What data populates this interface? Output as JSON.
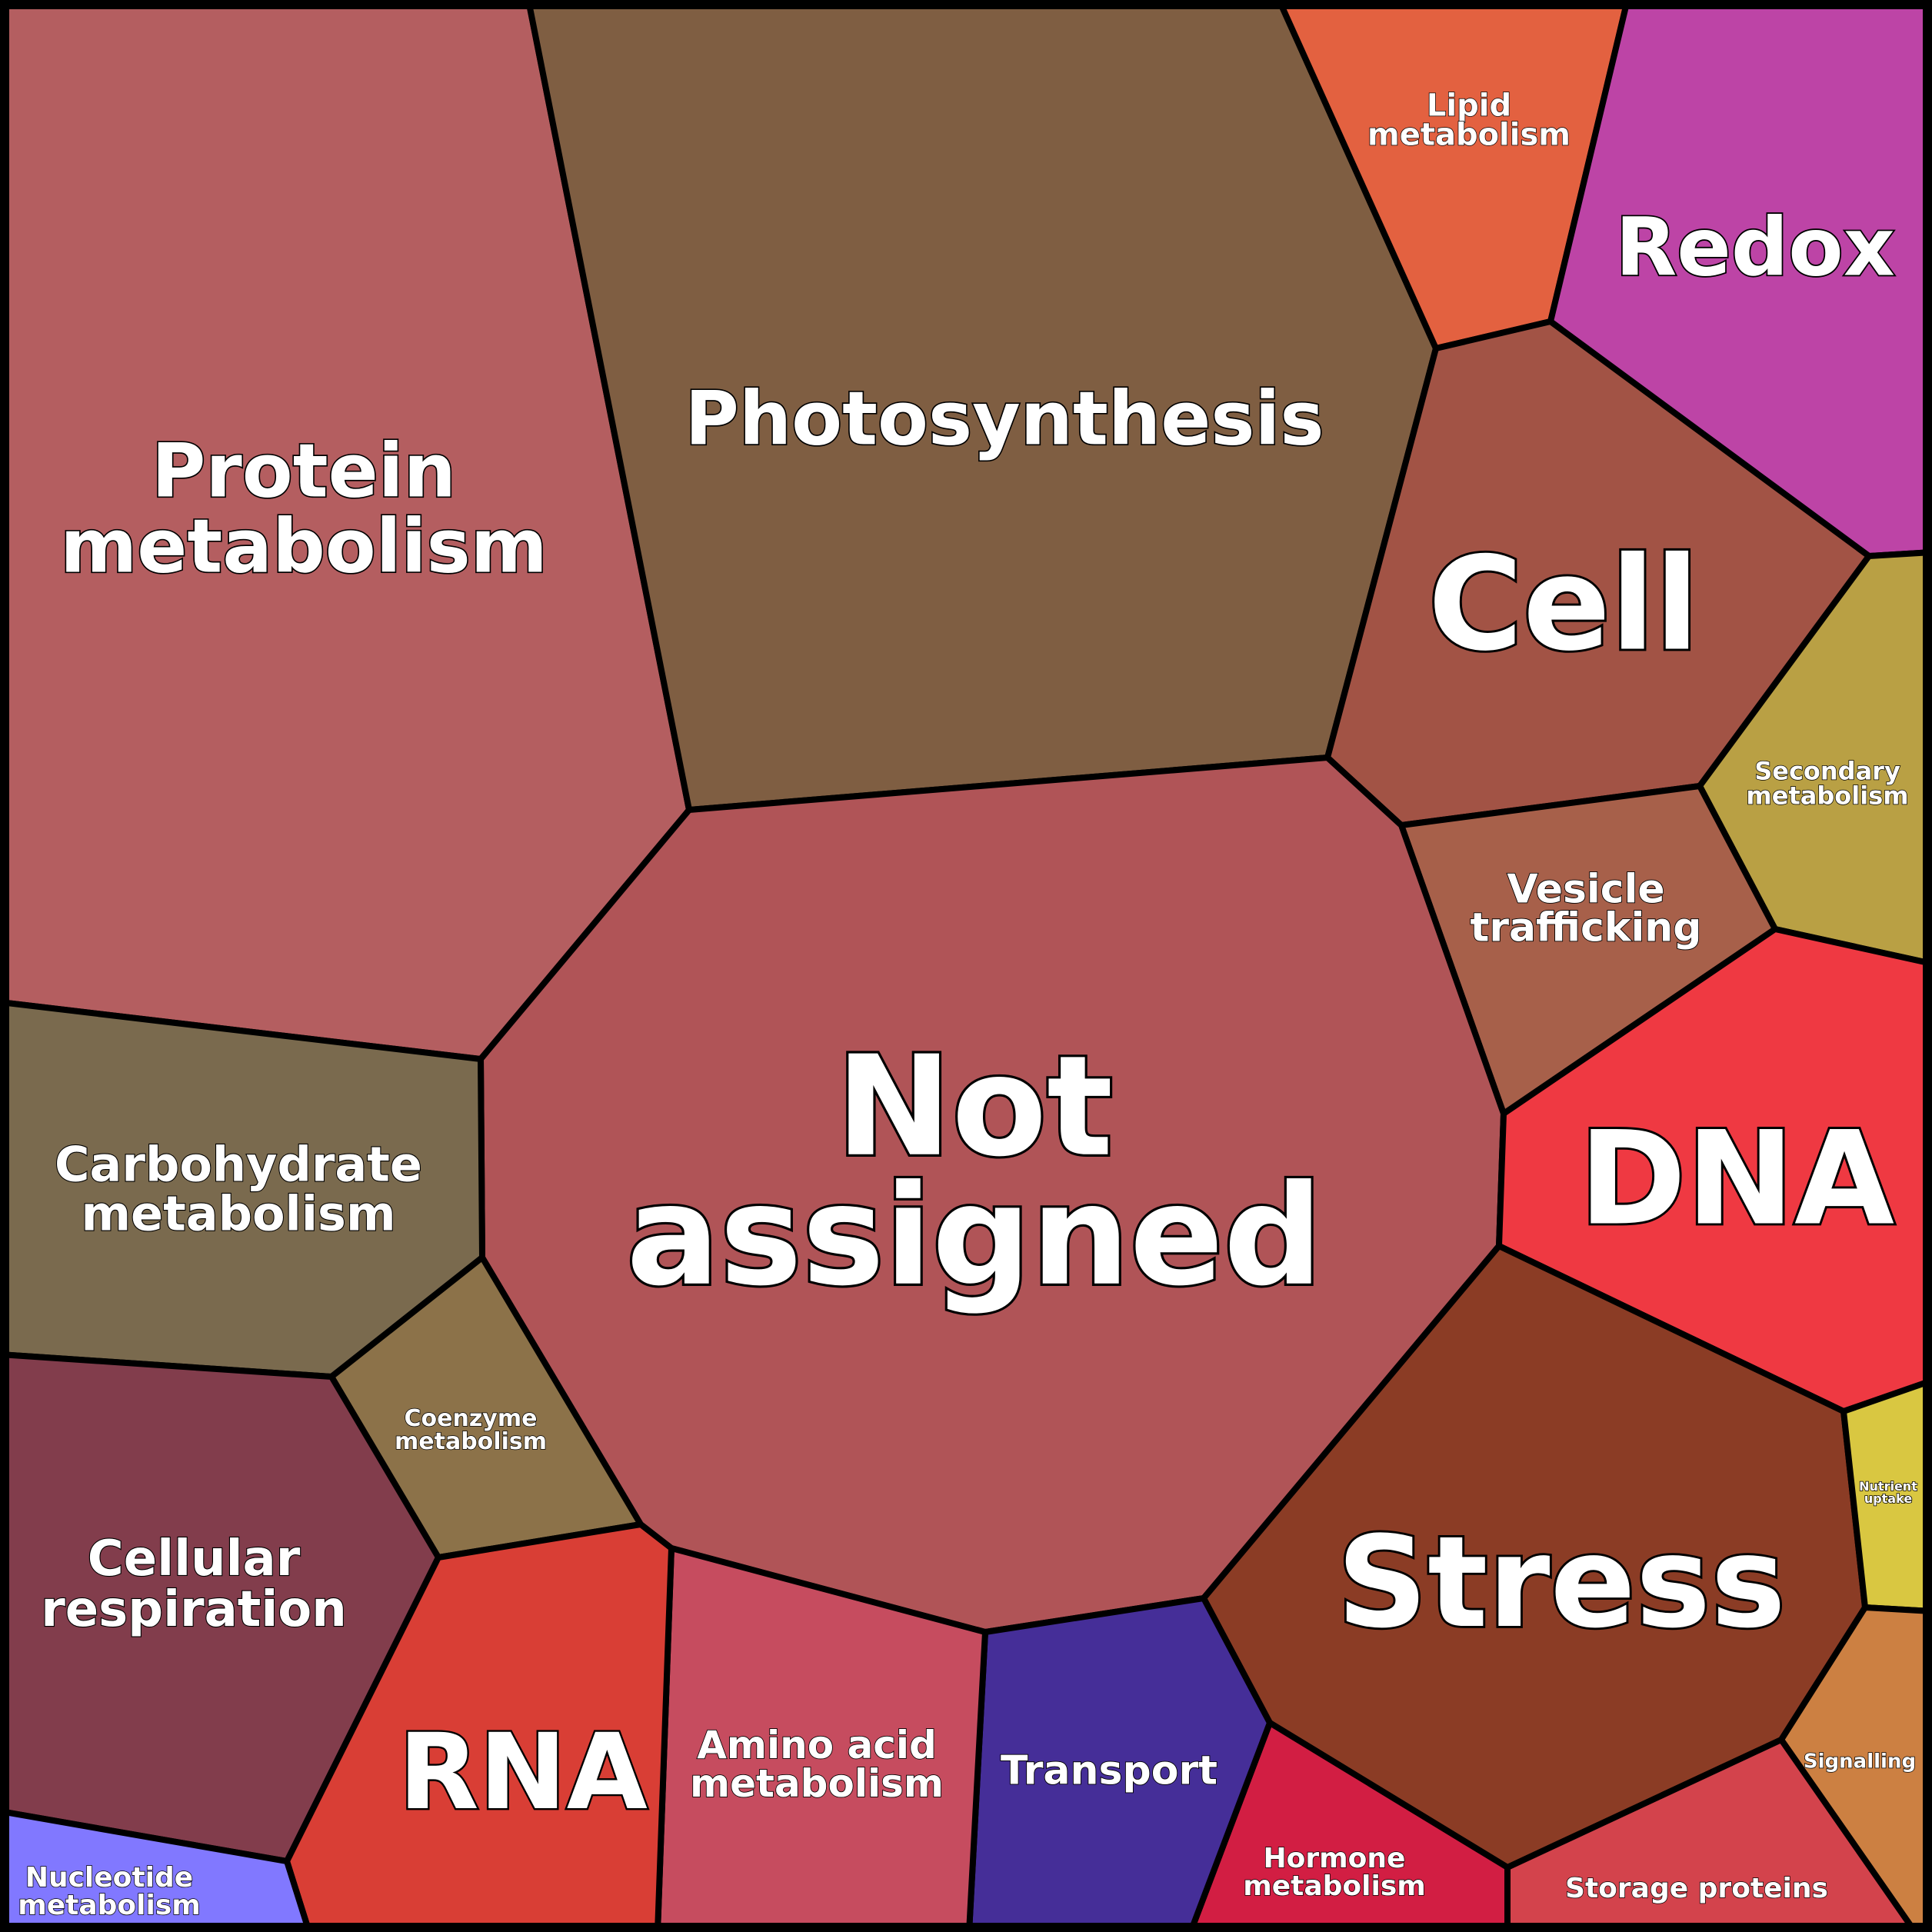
{
  "chart_data": {
    "type": "voronoi-treemap",
    "cells": [
      {
        "id": "protein",
        "label": [
          "Protein",
          "metabolism"
        ],
        "color": "#b45e60"
      },
      {
        "id": "photo",
        "label": [
          "Photosynthesis"
        ],
        "color": "#7f5e42"
      },
      {
        "id": "lipid",
        "label": [
          "Lipid",
          "metabolism"
        ],
        "color": "#e36140"
      },
      {
        "id": "redox",
        "label": [
          "Redox"
        ],
        "color": "#bd44a6"
      },
      {
        "id": "cell",
        "label": [
          "Cell"
        ],
        "color": "#a25345"
      },
      {
        "id": "secondary",
        "label": [
          "Secondary",
          "metabolism"
        ],
        "color": "#b9a044"
      },
      {
        "id": "vesicle",
        "label": [
          "Vesicle",
          "trafficking"
        ],
        "color": "#a7604a"
      },
      {
        "id": "notassigned",
        "label": [
          "Not",
          "assigned"
        ],
        "color": "#b05457"
      },
      {
        "id": "carb",
        "label": [
          "Carbohydrate",
          "metabolism"
        ],
        "color": "#7a6a4e"
      },
      {
        "id": "coenzyme",
        "label": [
          "Coenzyme",
          "metabolism"
        ],
        "color": "#8c7249"
      },
      {
        "id": "cellresp",
        "label": [
          "Cellular",
          "respiration"
        ],
        "color": "#823d4c"
      },
      {
        "id": "dna",
        "label": [
          "DNA"
        ],
        "color": "#ef3942"
      },
      {
        "id": "stress",
        "label": [
          "Stress"
        ],
        "color": "#8b3c25"
      },
      {
        "id": "nutrient",
        "label": [
          "Nutrient",
          "uptake"
        ],
        "color": "#d9c741"
      },
      {
        "id": "signalling",
        "label": [
          "Signalling"
        ],
        "color": "#cc8042"
      },
      {
        "id": "storage",
        "label": [
          "Storage proteins"
        ],
        "color": "#d3434c"
      },
      {
        "id": "hormone",
        "label": [
          "Hormone",
          "metabolism"
        ],
        "color": "#d21e43"
      },
      {
        "id": "transport",
        "label": [
          "Transport"
        ],
        "color": "#452e98"
      },
      {
        "id": "aminoacid",
        "label": [
          "Amino acid",
          "metabolism"
        ],
        "color": "#c64c5f"
      },
      {
        "id": "rna",
        "label": [
          "RNA"
        ],
        "color": "#d93e35"
      },
      {
        "id": "nucleotide",
        "label": [
          "Nucleotide",
          "metabolism"
        ],
        "color": "#8178ff"
      }
    ]
  }
}
